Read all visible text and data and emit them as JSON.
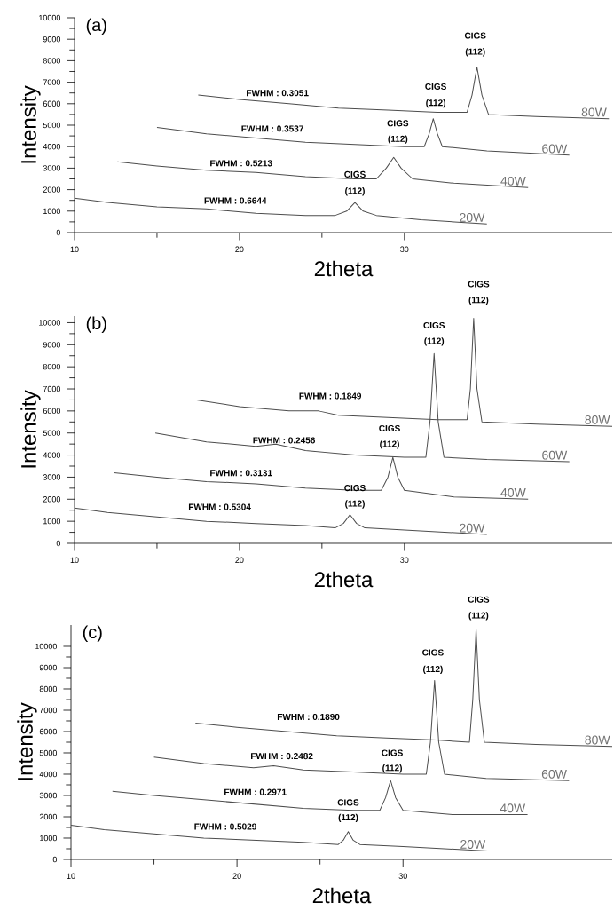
{
  "chart_data": [
    {
      "type": "line",
      "xlabel": "2theta",
      "ylabel": "Intensity",
      "xlim": [
        10,
        42.6
      ],
      "ylim": [
        0,
        10000
      ],
      "xticks": [
        10,
        20,
        30
      ],
      "yticks": [
        0,
        1000,
        2000,
        3000,
        4000,
        5000,
        6000,
        7000,
        8000,
        9000,
        10000
      ],
      "series": [
        {
          "name": "20W",
          "color": "#4d4d4d",
          "x": [
            10,
            12,
            15,
            18,
            21,
            24,
            25.8,
            26.5,
            27.0,
            27.5,
            28.3,
            31,
            35
          ],
          "values": [
            1600,
            1400,
            1200,
            1100,
            900,
            800,
            800,
            1000,
            1400,
            1000,
            800,
            600,
            400
          ]
        },
        {
          "name": "40W",
          "color": "#4d4d4d",
          "x": [
            12.6,
            15,
            18,
            21,
            24,
            27,
            28.3,
            28.9,
            29.35,
            29.8,
            30.5,
            33,
            37.5
          ],
          "values": [
            3300,
            3100,
            2900,
            2800,
            2600,
            2500,
            2500,
            3000,
            3500,
            3000,
            2500,
            2300,
            2100
          ]
        },
        {
          "name": "60W",
          "color": "#4d4d4d",
          "x": [
            15,
            18,
            21,
            24,
            27,
            30,
            31.2,
            31.5,
            31.75,
            32.0,
            32.3,
            35,
            40
          ],
          "values": [
            4900,
            4600,
            4400,
            4200,
            4100,
            4000,
            4000,
            4600,
            5300,
            4600,
            4000,
            3800,
            3600
          ]
        },
        {
          "name": "80W",
          "color": "#4d4d4d",
          "x": [
            17.5,
            20,
            23,
            26,
            29,
            32,
            33.8,
            34.1,
            34.4,
            34.7,
            35.1,
            38,
            42.4
          ],
          "values": [
            6400,
            6200,
            6000,
            5800,
            5700,
            5600,
            5600,
            6400,
            7700,
            6400,
            5500,
            5400,
            5300
          ]
        }
      ],
      "annotations": [
        "(a)",
        "FWHM : 0.3051",
        "FWHM : 0.3537",
        "FWHM : 0.5213",
        "FWHM : 0.6644",
        "CIGS",
        "(112)",
        "CIGS",
        "(112)",
        "CIGS",
        "(112)",
        "CIGS",
        "(112)"
      ]
    },
    {
      "type": "line",
      "xlabel": "2theta",
      "ylabel": "Intensity",
      "xlim": [
        10,
        42.6
      ],
      "ylim": [
        0,
        10300
      ],
      "xticks": [
        10,
        20,
        30
      ],
      "yticks": [
        0,
        1000,
        2000,
        3000,
        4000,
        5000,
        6000,
        7000,
        8000,
        9000,
        10000
      ],
      "series": [
        {
          "name": "20W",
          "color": "#4d4d4d",
          "x": [
            10,
            12,
            15,
            18,
            21,
            24,
            25.8,
            26.3,
            26.7,
            27.1,
            27.6,
            30,
            35
          ],
          "values": [
            1600,
            1400,
            1200,
            1000,
            900,
            800,
            700,
            900,
            1300,
            900,
            700,
            600,
            400
          ]
        },
        {
          "name": "40W",
          "color": "#4d4d4d",
          "x": [
            12.4,
            15,
            18,
            21,
            24,
            27,
            28.6,
            29.0,
            29.3,
            29.6,
            30.0,
            33,
            37.5
          ],
          "values": [
            3200,
            3000,
            2800,
            2700,
            2500,
            2400,
            2400,
            3000,
            3900,
            3000,
            2400,
            2100,
            2000
          ]
        },
        {
          "name": "60W",
          "color": "#4d4d4d",
          "x": [
            14.9,
            18,
            21,
            22.2,
            24,
            27,
            30,
            31.3,
            31.55,
            31.8,
            32.05,
            32.4,
            35,
            40
          ],
          "values": [
            5000,
            4600,
            4400,
            4500,
            4200,
            4000,
            3900,
            3900,
            5500,
            8600,
            5500,
            3900,
            3800,
            3700
          ]
        },
        {
          "name": "80W",
          "color": "#4d4d4d",
          "x": [
            17.4,
            20,
            23,
            24.8,
            26,
            29,
            32,
            33.8,
            34.0,
            34.2,
            34.4,
            34.7,
            38,
            42.6
          ],
          "values": [
            6500,
            6200,
            6000,
            6000,
            5800,
            5700,
            5600,
            5600,
            7000,
            10200,
            7000,
            5500,
            5400,
            5300
          ]
        }
      ],
      "annotations": [
        "(b)",
        "FWHM : 0.1849",
        "FWHM : 0.2456",
        "FWHM : 0.3131",
        "FWHM : 0.5304",
        "CIGS",
        "(112)",
        "CIGS",
        "(112)",
        "CIGS",
        "(112)",
        "CIGS",
        "(112)"
      ]
    },
    {
      "type": "line",
      "xlabel": "2theta",
      "ylabel": "Intensity",
      "xlim": [
        10,
        42.6
      ],
      "ylim": [
        0,
        11000
      ],
      "xticks": [
        10,
        20,
        30
      ],
      "yticks": [
        0,
        1000,
        2000,
        3000,
        4000,
        5000,
        6000,
        7000,
        8000,
        9000,
        10000
      ],
      "series": [
        {
          "name": "20W",
          "color": "#4d4d4d",
          "x": [
            10,
            12,
            15,
            18,
            21,
            24,
            26.1,
            26.4,
            26.7,
            27.0,
            27.4,
            30,
            35.1
          ],
          "values": [
            1600,
            1400,
            1200,
            1000,
            900,
            800,
            700,
            900,
            1300,
            900,
            700,
            600,
            400
          ]
        },
        {
          "name": "40W",
          "color": "#4d4d4d",
          "x": [
            12.5,
            15,
            18,
            21,
            24,
            27,
            28.6,
            28.95,
            29.25,
            29.55,
            30.0,
            33,
            37.5
          ],
          "values": [
            3200,
            3000,
            2800,
            2600,
            2400,
            2300,
            2300,
            2900,
            3700,
            2900,
            2300,
            2100,
            2100
          ]
        },
        {
          "name": "60W",
          "color": "#4d4d4d",
          "x": [
            15,
            18,
            21,
            22.2,
            24,
            27,
            30,
            31.4,
            31.65,
            31.9,
            32.15,
            32.5,
            35,
            40
          ],
          "values": [
            4800,
            4500,
            4300,
            4400,
            4200,
            4100,
            4000,
            4000,
            5500,
            8400,
            5500,
            4000,
            3800,
            3700
          ]
        },
        {
          "name": "80W",
          "color": "#4d4d4d",
          "x": [
            17.5,
            20,
            23,
            26,
            29,
            32,
            34.0,
            34.2,
            34.4,
            34.6,
            34.9,
            38,
            42.6
          ],
          "values": [
            6400,
            6200,
            6000,
            5800,
            5700,
            5600,
            5500,
            7500,
            10800,
            7500,
            5500,
            5400,
            5300
          ]
        }
      ],
      "annotations": [
        "(c)",
        "FWHM : 0.1890",
        "FWHM : 0.2482",
        "FWHM : 0.2971",
        "FWHM : 0.5029",
        "CIGS",
        "(112)",
        "CIGS",
        "(112)",
        "CIGS",
        "(112)",
        "CIGS",
        "(112)"
      ]
    }
  ]
}
